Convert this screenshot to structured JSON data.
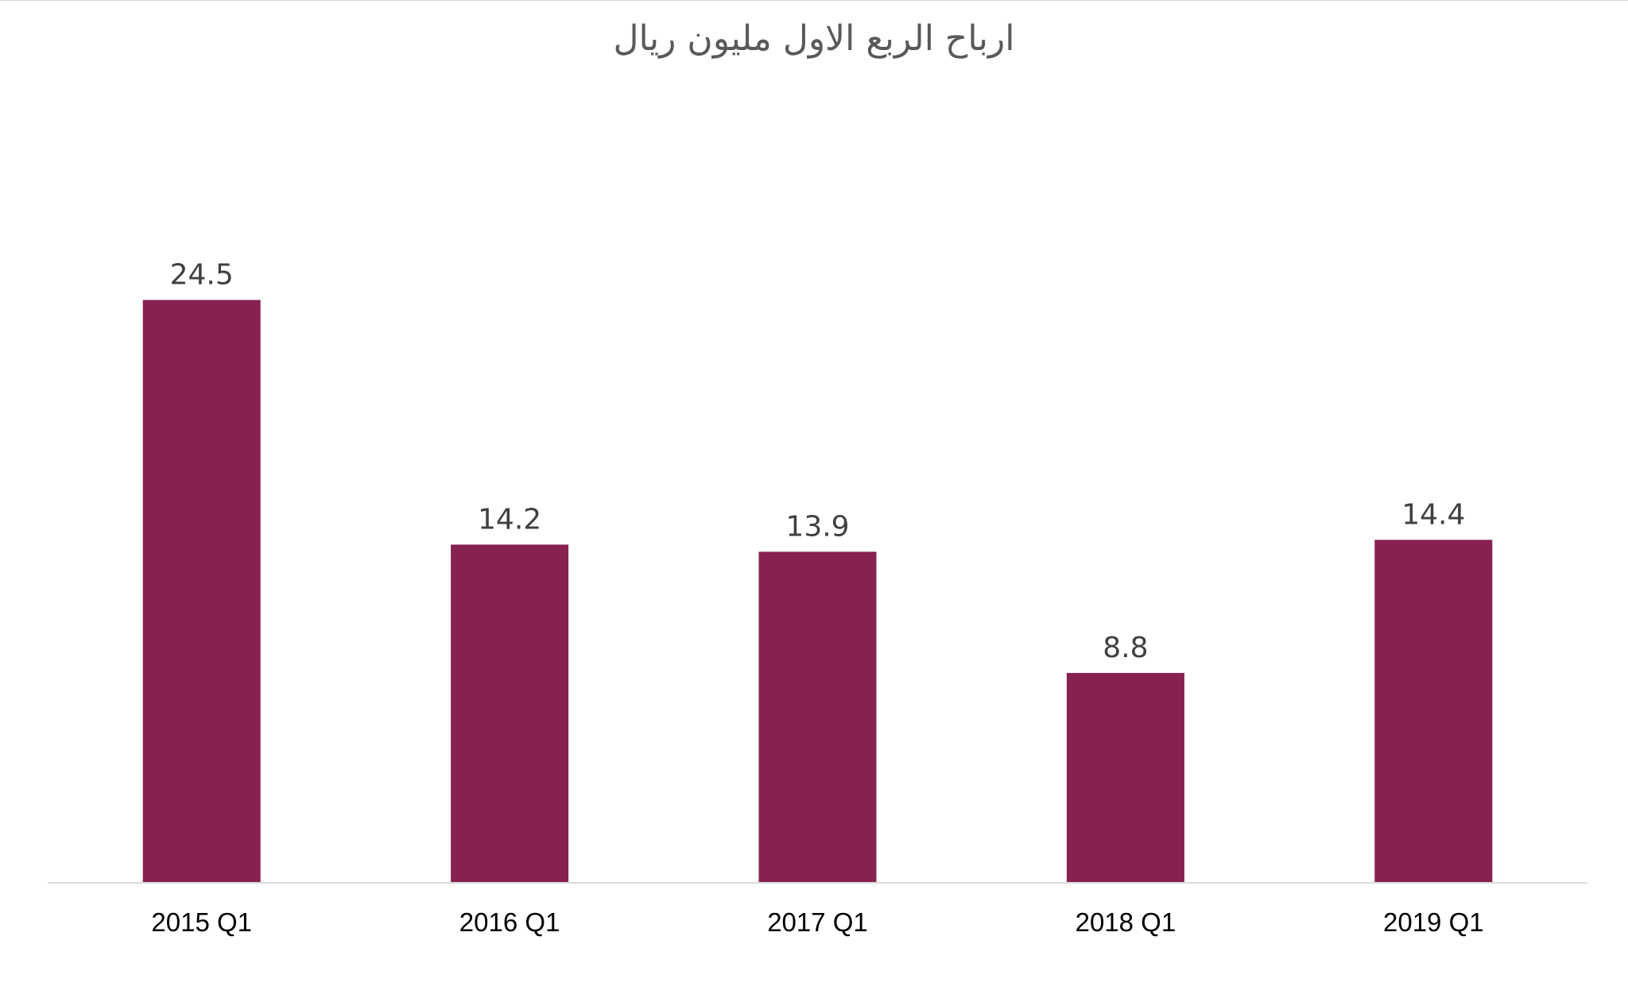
{
  "chart_data": {
    "type": "bar",
    "title": "ارباح الربع الاول مليون ريال",
    "categories": [
      "2015 Q1",
      "2016 Q1",
      "2017 Q1",
      "2018 Q1",
      "2019 Q1"
    ],
    "series": [
      {
        "values": [
          24.5,
          14.2,
          13.9,
          8.8,
          14.4
        ],
        "color": "#862150"
      }
    ],
    "ylim": [
      0,
      35
    ],
    "grid": false,
    "legend": "none",
    "data_labels": true,
    "axis_color": "#d9d9d9"
  }
}
